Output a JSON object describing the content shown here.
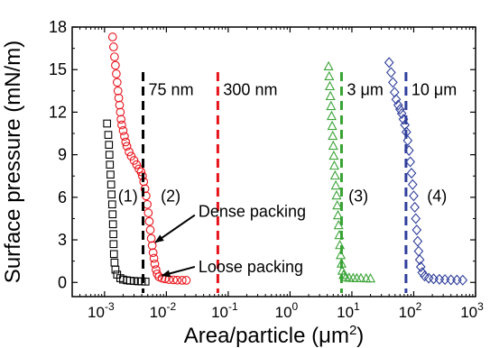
{
  "chart_data": {
    "type": "scatter",
    "xlabel_base": "Area/particle (μm",
    "xlabel_sup": "2",
    "xlabel_close": ")",
    "ylabel": "Surface pressure (mN/m)",
    "x_scale": "log",
    "xlim": [
      0.0003,
      1000
    ],
    "ylim": [
      -1,
      18
    ],
    "x_ticks": [
      {
        "base": "10",
        "exp": "-3",
        "value": 0.001
      },
      {
        "base": "10",
        "exp": "-2",
        "value": 0.01
      },
      {
        "base": "10",
        "exp": "-1",
        "value": 0.1
      },
      {
        "base": "10",
        "exp": "0",
        "value": 1
      },
      {
        "base": "10",
        "exp": "1",
        "value": 10
      },
      {
        "base": "10",
        "exp": "2",
        "value": 100
      },
      {
        "base": "10",
        "exp": "3",
        "value": 1000
      }
    ],
    "y_ticks": [
      0,
      3,
      6,
      9,
      12,
      15,
      18
    ],
    "grid": false,
    "series": [
      {
        "label": "(1)",
        "marker": "square",
        "color": "#000000",
        "points": [
          [
            0.0011,
            11.2
          ],
          [
            0.00115,
            10.4
          ],
          [
            0.00118,
            9.7
          ],
          [
            0.0012,
            9.0
          ],
          [
            0.00122,
            8.3
          ],
          [
            0.00125,
            7.6
          ],
          [
            0.00128,
            6.9
          ],
          [
            0.0013,
            6.2
          ],
          [
            0.00133,
            5.5
          ],
          [
            0.00135,
            4.8
          ],
          [
            0.00137,
            4.1
          ],
          [
            0.00139,
            3.4
          ],
          [
            0.0014,
            2.7
          ],
          [
            0.00142,
            2.0
          ],
          [
            0.00145,
            1.4
          ],
          [
            0.0015,
            0.9
          ],
          [
            0.0016,
            0.55
          ],
          [
            0.0018,
            0.3
          ],
          [
            0.002,
            0.2
          ],
          [
            0.0023,
            0.15
          ],
          [
            0.0026,
            0.12
          ],
          [
            0.003,
            0.1
          ],
          [
            0.0035,
            0.08
          ],
          [
            0.004,
            0.07
          ],
          [
            0.0046,
            0.06
          ]
        ]
      },
      {
        "label": "(2)",
        "marker": "circle",
        "color": "#e8141c",
        "points": [
          [
            0.00135,
            17.3
          ],
          [
            0.0014,
            16.6
          ],
          [
            0.00145,
            15.9
          ],
          [
            0.0015,
            15.3
          ],
          [
            0.00155,
            14.7
          ],
          [
            0.0016,
            14.1
          ],
          [
            0.00165,
            13.5
          ],
          [
            0.0017,
            13.0
          ],
          [
            0.00175,
            12.5
          ],
          [
            0.0018,
            12.0
          ],
          [
            0.00185,
            11.5
          ],
          [
            0.0019,
            11.1
          ],
          [
            0.002,
            10.7
          ],
          [
            0.0021,
            10.3
          ],
          [
            0.0022,
            9.9
          ],
          [
            0.0023,
            9.6
          ],
          [
            0.0025,
            9.2
          ],
          [
            0.0027,
            8.9
          ],
          [
            0.003,
            8.6
          ],
          [
            0.0033,
            8.3
          ],
          [
            0.0036,
            8.0
          ],
          [
            0.0039,
            7.8
          ],
          [
            0.0041,
            7.5
          ],
          [
            0.0043,
            7.1
          ],
          [
            0.0045,
            6.6
          ],
          [
            0.0047,
            6.1
          ],
          [
            0.0049,
            5.5
          ],
          [
            0.0051,
            4.9
          ],
          [
            0.0053,
            4.3
          ],
          [
            0.0055,
            3.7
          ],
          [
            0.0057,
            3.1
          ],
          [
            0.0059,
            2.6
          ],
          [
            0.0061,
            2.1
          ],
          [
            0.0063,
            1.7
          ],
          [
            0.0065,
            1.3
          ],
          [
            0.0068,
            0.9
          ],
          [
            0.0071,
            0.6
          ],
          [
            0.0076,
            0.4
          ],
          [
            0.0085,
            0.3
          ],
          [
            0.0095,
            0.25
          ],
          [
            0.011,
            0.2
          ],
          [
            0.013,
            0.18
          ],
          [
            0.015,
            0.16
          ],
          [
            0.018,
            0.15
          ],
          [
            0.021,
            0.15
          ]
        ]
      },
      {
        "label": "(3)",
        "marker": "triangle",
        "color": "#3aa336",
        "points": [
          [
            4.2,
            15.2
          ],
          [
            4.3,
            14.5
          ],
          [
            4.4,
            13.8
          ],
          [
            4.5,
            13.1
          ],
          [
            4.6,
            12.4
          ],
          [
            4.7,
            11.7
          ],
          [
            4.8,
            11.0
          ],
          [
            4.9,
            10.3
          ],
          [
            5.0,
            9.6
          ],
          [
            5.1,
            8.9
          ],
          [
            5.2,
            8.2
          ],
          [
            5.35,
            7.5
          ],
          [
            5.5,
            6.8
          ],
          [
            5.65,
            6.1
          ],
          [
            5.8,
            5.4
          ],
          [
            5.95,
            4.7
          ],
          [
            6.1,
            4.0
          ],
          [
            6.25,
            3.3
          ],
          [
            6.4,
            2.6
          ],
          [
            6.6,
            1.9
          ],
          [
            6.8,
            1.3
          ],
          [
            7.0,
            0.8
          ],
          [
            7.3,
            0.5
          ],
          [
            8.0,
            0.35
          ],
          [
            9.0,
            0.3
          ],
          [
            10.5,
            0.28
          ],
          [
            12.0,
            0.27
          ],
          [
            14.0,
            0.27
          ],
          [
            17.0,
            0.26
          ],
          [
            20.0,
            0.25
          ]
        ]
      },
      {
        "label": "(4)",
        "marker": "diamond",
        "color": "#2f3e9a",
        "points": [
          [
            40,
            15.5
          ],
          [
            43,
            14.8
          ],
          [
            46,
            14.1
          ],
          [
            49,
            13.4
          ],
          [
            52,
            12.9
          ],
          [
            56,
            12.5
          ],
          [
            60,
            12.2
          ],
          [
            64,
            11.9
          ],
          [
            68,
            11.5
          ],
          [
            72,
            11.1
          ],
          [
            76,
            10.6
          ],
          [
            80,
            10.0
          ],
          [
            84,
            9.3
          ],
          [
            88,
            8.5
          ],
          [
            92,
            7.7
          ],
          [
            96,
            6.9
          ],
          [
            100,
            6.1
          ],
          [
            104,
            5.3
          ],
          [
            108,
            4.5
          ],
          [
            112,
            3.7
          ],
          [
            116,
            2.9
          ],
          [
            120,
            2.2
          ],
          [
            125,
            1.6
          ],
          [
            130,
            1.1
          ],
          [
            137,
            0.7
          ],
          [
            150,
            0.45
          ],
          [
            175,
            0.3
          ],
          [
            210,
            0.25
          ],
          [
            260,
            0.22
          ],
          [
            320,
            0.2
          ],
          [
            400,
            0.18
          ],
          [
            500,
            0.17
          ],
          [
            620,
            0.16
          ]
        ]
      }
    ],
    "reference_lines": [
      {
        "label": "75 nm",
        "x": 0.0042,
        "color": "#000000",
        "label_pos": "right"
      },
      {
        "label": "300 nm",
        "x": 0.068,
        "color": "#e8141c",
        "label_pos": "right"
      },
      {
        "label": "3 μm",
        "x": 6.8,
        "color": "#3aa336",
        "label_pos": "right"
      },
      {
        "label": "10 μm",
        "x": 75,
        "color": "#2f3e9a",
        "label_pos": "right"
      }
    ],
    "annotations": [
      {
        "text": "Dense packing",
        "text_x": 0.033,
        "text_y": 5.0,
        "arrow_to": [
          0.0058,
          2.7
        ]
      },
      {
        "text": "Loose packing",
        "text_x": 0.033,
        "text_y": 1.1,
        "arrow_to": [
          0.0074,
          0.35
        ]
      }
    ]
  }
}
